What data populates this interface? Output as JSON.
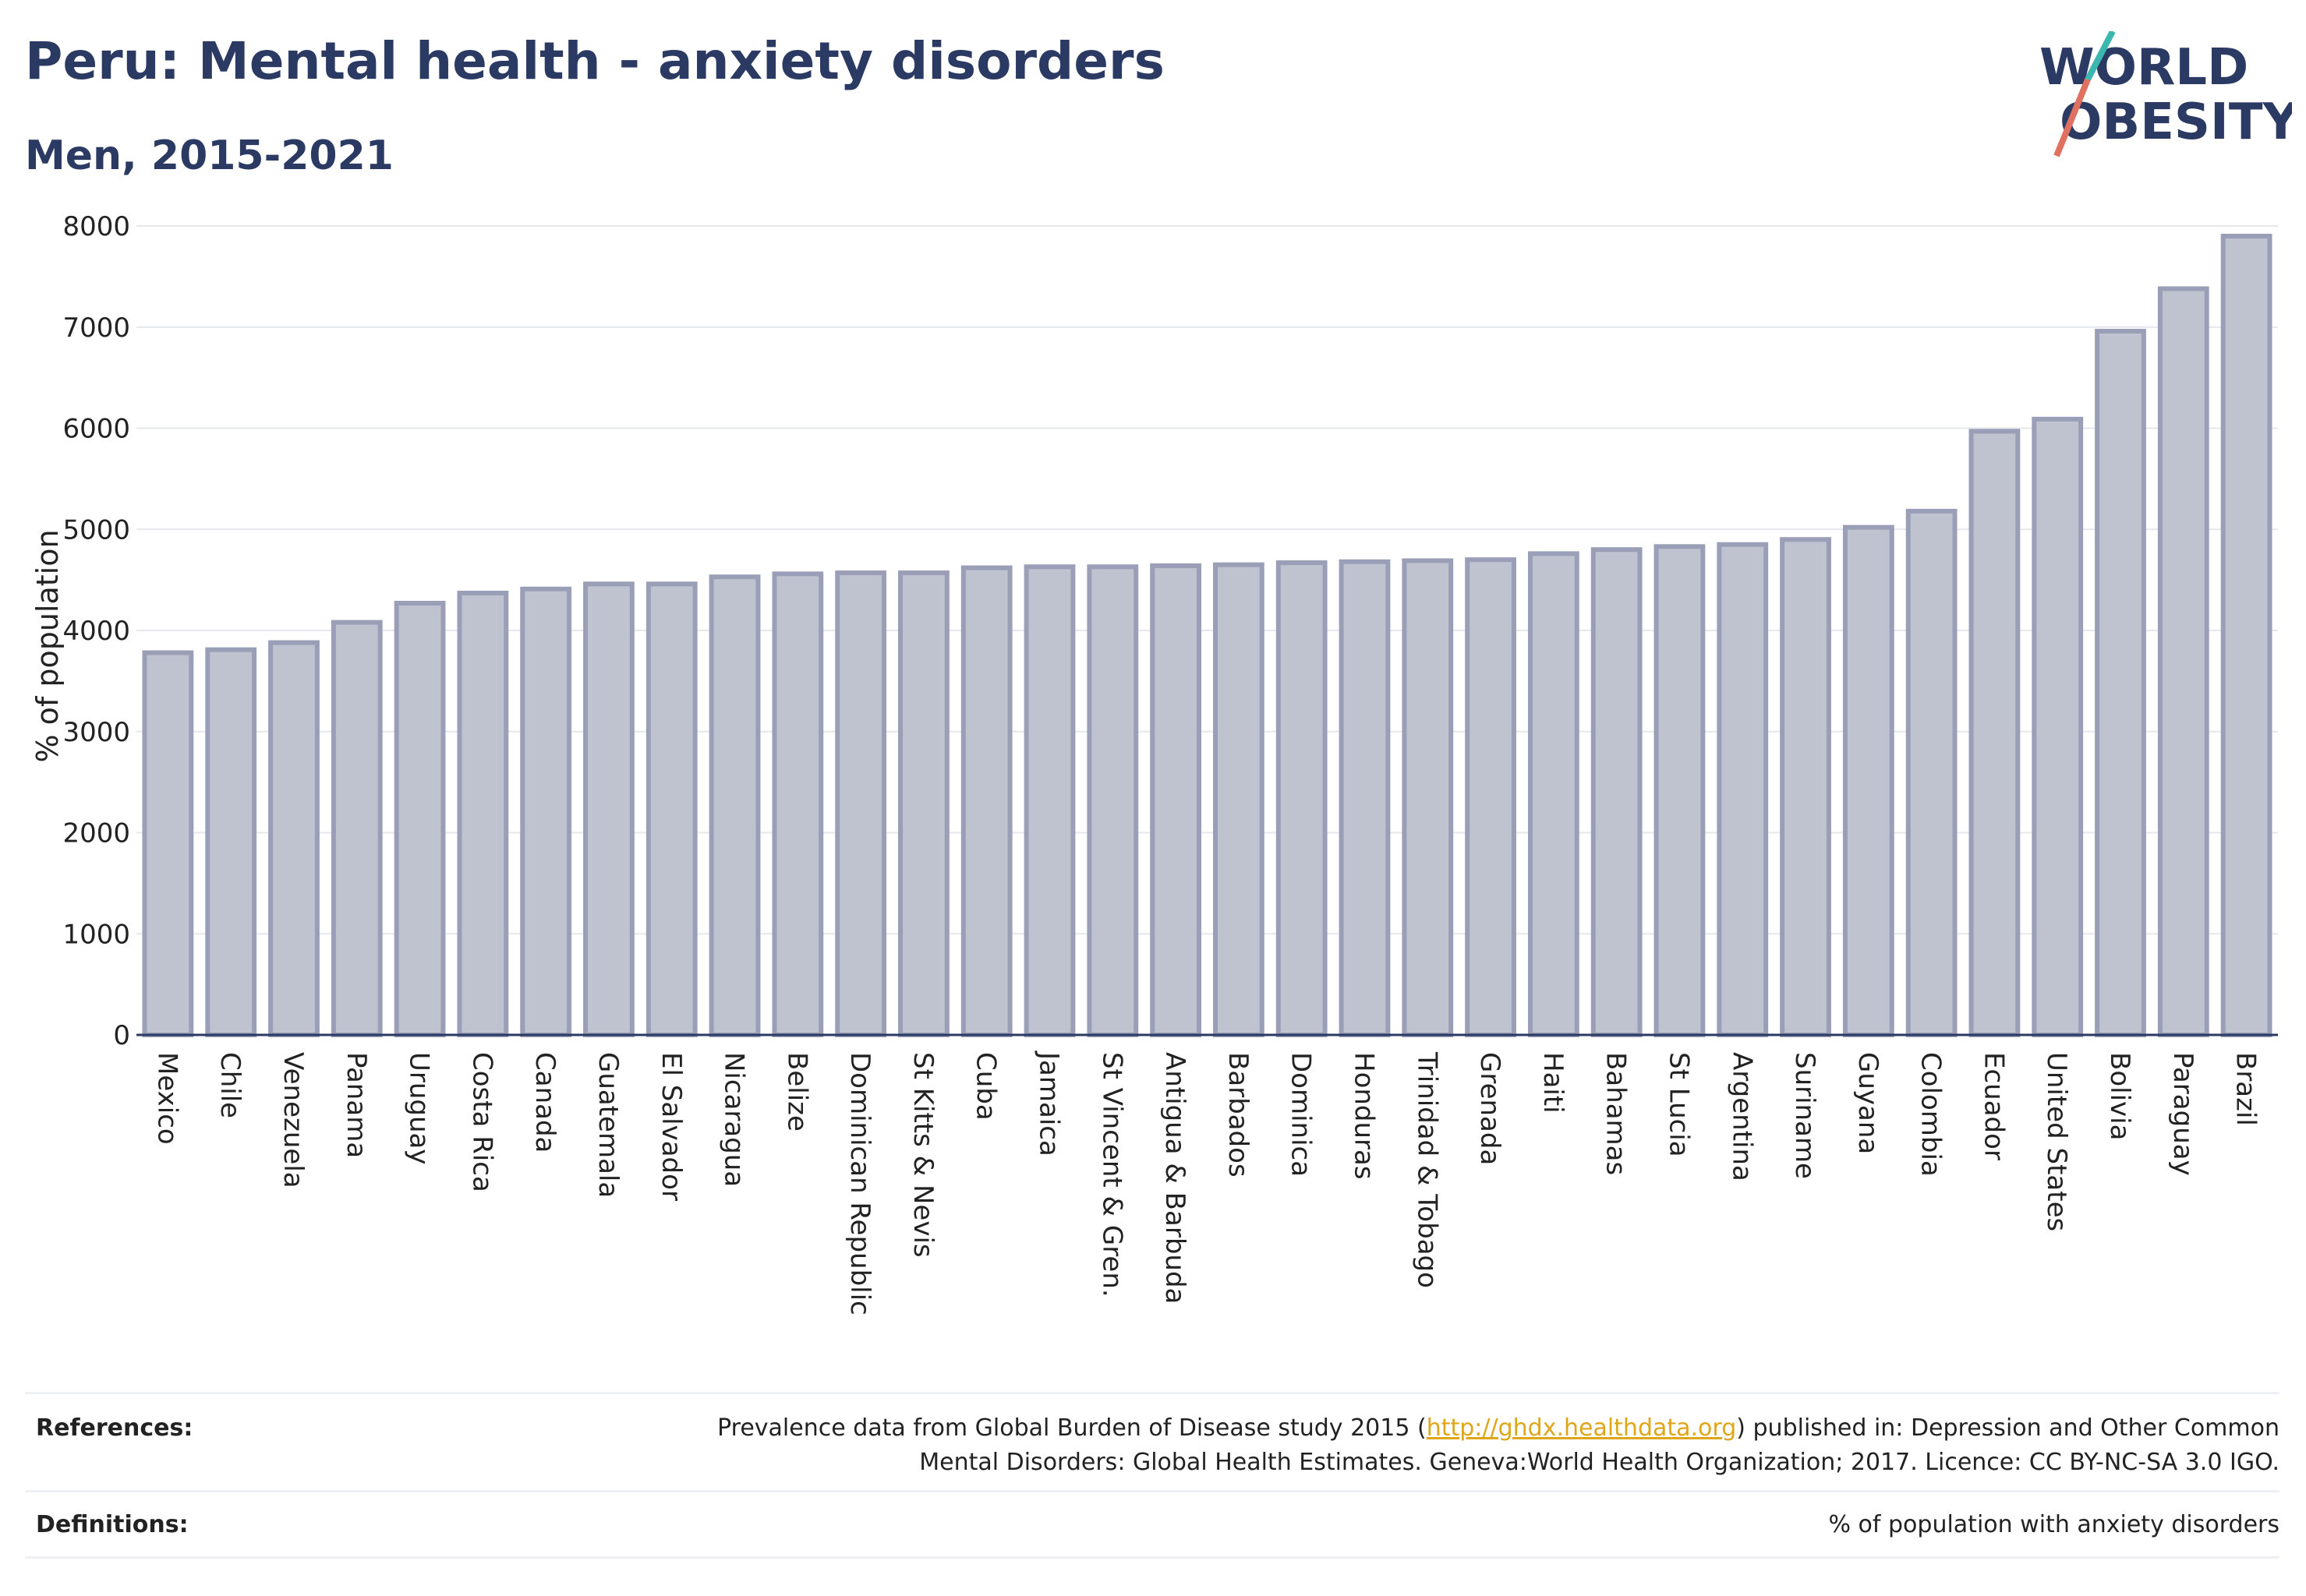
{
  "header": {
    "title": "Peru: Mental health - anxiety disorders",
    "subtitle": "Men, 2015-2021"
  },
  "logo": {
    "line1": "WORLD",
    "line2": "OBESITY"
  },
  "chart_data": {
    "type": "bar",
    "ylabel": "% of population",
    "ylim": [
      0,
      8000
    ],
    "yticks": [
      0,
      1000,
      2000,
      3000,
      4000,
      5000,
      6000,
      7000,
      8000
    ],
    "grid": true,
    "categories": [
      "Mexico",
      "Chile",
      "Venezuela",
      "Panama",
      "Uruguay",
      "Costa Rica",
      "Canada",
      "Guatemala",
      "El Salvador",
      "Nicaragua",
      "Belize",
      "Dominican Republic",
      "St Kitts & Nevis",
      "Cuba",
      "Jamaica",
      "St Vincent & Gren.",
      "Antigua & Barbuda",
      "Barbados",
      "Dominica",
      "Honduras",
      "Trinidad & Tobago",
      "Grenada",
      "Haiti",
      "Bahamas",
      "St Lucia",
      "Argentina",
      "Suriname",
      "Guyana",
      "Colombia",
      "Ecuador",
      "United States",
      "Bolivia",
      "Paraguay",
      "Brazil"
    ],
    "values": [
      3780,
      3810,
      3880,
      4080,
      4270,
      4370,
      4410,
      4460,
      4460,
      4530,
      4560,
      4570,
      4570,
      4620,
      4630,
      4630,
      4640,
      4650,
      4670,
      4680,
      4690,
      4700,
      4760,
      4800,
      4830,
      4850,
      4900,
      5020,
      5180,
      5970,
      6090,
      6960,
      7380,
      7900
    ],
    "bar_fill": "#bfc2cf",
    "bar_stroke": "#9a9fb7"
  },
  "footer": {
    "references_label": "References:",
    "references_text_before": "Prevalence data from Global Burden of Disease study 2015 (",
    "references_link": "http://ghdx.healthdata.org",
    "references_text_after": ") published in: Depression and Other Common",
    "references_line2": "Mental Disorders: Global Health Estimates. Geneva:World Health Organization; 2017. Licence: CC BY-NC-SA 3.0 IGO.",
    "definitions_label": "Definitions:",
    "definitions_text": "% of population with anxiety disorders"
  }
}
